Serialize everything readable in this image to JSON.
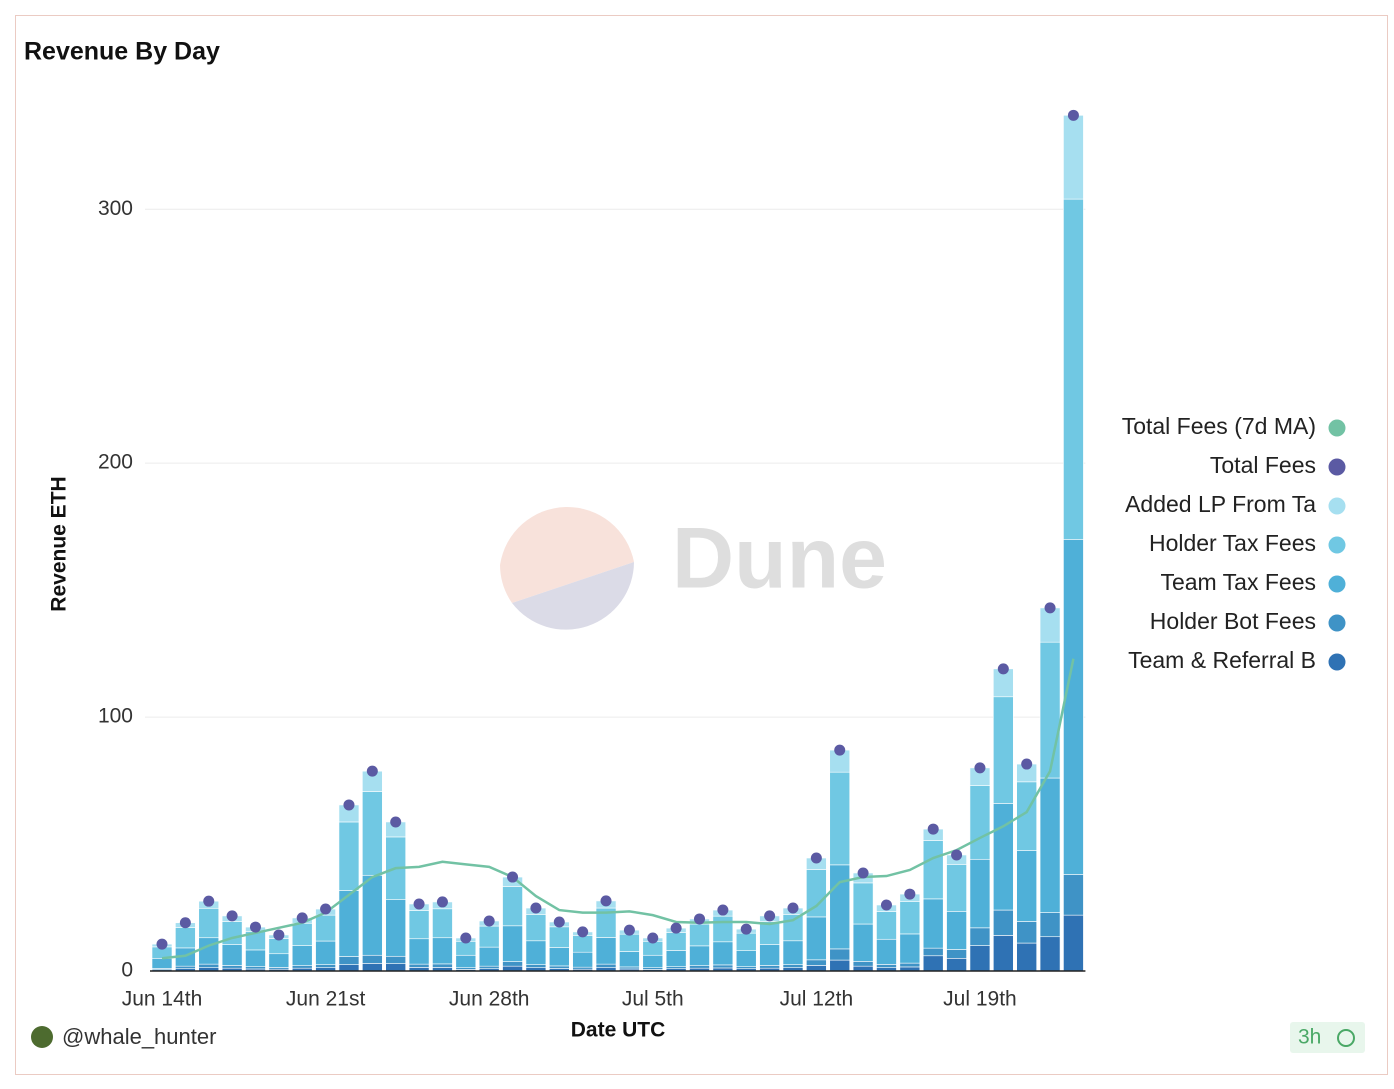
{
  "chart_data": {
    "type": "bar",
    "stacked": true,
    "title": "Revenue By Day",
    "x_label": "Date UTC",
    "y_label": "Revenue ETH",
    "watermark": "Dune",
    "author": "@whale_hunter",
    "age": "3h",
    "categories": [
      "Jun 14th",
      null,
      null,
      null,
      null,
      null,
      null,
      "Jun 21st",
      null,
      null,
      null,
      null,
      null,
      null,
      "Jun 28th",
      null,
      null,
      null,
      null,
      null,
      null,
      "Jul 5th",
      null,
      null,
      null,
      null,
      null,
      null,
      "Jul 12th",
      null,
      null,
      null,
      null,
      null,
      null,
      "Jul 19th",
      null,
      null,
      null,
      null
    ],
    "ylim": [
      0,
      345
    ],
    "yticks": [
      0,
      100,
      200,
      300
    ],
    "grid": true,
    "legend": "right",
    "series": [
      {
        "name": "Total Fees (7d MA)",
        "type": "line",
        "color": "#72c2a4",
        "values": [
          5,
          6,
          10,
          13,
          15,
          17,
          19,
          23,
          30,
          37,
          40.5,
          41,
          43,
          42,
          41,
          37,
          29.5,
          24,
          23,
          23,
          23.5,
          22,
          19.3,
          19,
          19.3,
          19.3,
          18.5,
          20,
          25.6,
          35,
          37,
          37.4,
          39.8,
          44.5,
          47.6,
          52.4,
          57,
          62.6,
          78.7,
          123
        ]
      },
      {
        "name": "Total Fees",
        "type": "scatter",
        "color": "#5b5aa3",
        "values": [
          10.6,
          19,
          27.5,
          21.7,
          17.3,
          14.2,
          20.9,
          24.4,
          65.4,
          78.7,
          58.7,
          26.4,
          27.2,
          13,
          19.7,
          37,
          24.8,
          19.3,
          15.4,
          27.6,
          16.1,
          13,
          16.9,
          20.5,
          24,
          16.5,
          21.7,
          24.8,
          44.5,
          87,
          38.6,
          26,
          30.3,
          55.9,
          45.7,
          80,
          119,
          81.5,
          143,
          337
        ]
      },
      {
        "name": "Added LP From Ta",
        "type": "bar",
        "color": "#a6dff0",
        "values": [
          1.1,
          1.9,
          2.8,
          2.2,
          1.7,
          1.4,
          2.1,
          2.4,
          6.7,
          8,
          5.9,
          2.6,
          2.7,
          1.3,
          2,
          3.7,
          2.5,
          1.9,
          1.5,
          2.8,
          1.6,
          1.3,
          1.7,
          2,
          2.4,
          1.6,
          2.2,
          2.5,
          4.5,
          8.7,
          3.9,
          2.6,
          3,
          4.5,
          3.7,
          7,
          11,
          7,
          13.5,
          33
        ]
      },
      {
        "name": "Holder Tax Fees",
        "type": "bar",
        "color": "#70c8e3",
        "values": [
          4.5,
          8,
          11.6,
          9.1,
          7.3,
          6,
          8.8,
          10.2,
          27,
          33,
          24.7,
          11.1,
          11.4,
          5.5,
          8.3,
          15.5,
          10.4,
          8.1,
          6.5,
          11.6,
          6.8,
          5.5,
          7.1,
          8.6,
          10.1,
          6.9,
          9.1,
          10.4,
          18.7,
          36.5,
          16.2,
          10.9,
          12.7,
          23,
          18.5,
          29,
          42,
          27,
          53.5,
          134
        ]
      },
      {
        "name": "Team Tax Fees",
        "type": "bar",
        "color": "#4fb0d8",
        "values": [
          4,
          7.2,
          10.4,
          8.2,
          6.6,
          5.4,
          7.9,
          9.3,
          26,
          31.5,
          22.3,
          10,
          10.3,
          4.9,
          7.5,
          14.1,
          9.4,
          7.3,
          5.9,
          10.5,
          6.1,
          4.9,
          6.4,
          7.8,
          9.1,
          6.3,
          8.2,
          9.4,
          16.9,
          33.1,
          14.7,
          9.9,
          11.5,
          19.4,
          15,
          27,
          42,
          28,
          53,
          132
        ]
      },
      {
        "name": "Holder Bot Fees",
        "type": "bar",
        "color": "#3f93c6",
        "values": [
          0.5,
          1,
          1.4,
          1.1,
          0.9,
          0.7,
          1,
          1.2,
          3.2,
          3.2,
          2.9,
          1.3,
          1.4,
          0.7,
          1,
          1.8,
          1.2,
          1,
          0.8,
          1.4,
          0.8,
          0.7,
          0.8,
          1,
          1.2,
          0.8,
          1.1,
          1.2,
          2.2,
          4.4,
          1.9,
          1.3,
          1.5,
          3,
          3.5,
          7,
          10,
          8.5,
          9.5,
          16
        ]
      },
      {
        "name": "Team & Referral B",
        "type": "bar",
        "color": "#2f72b4",
        "values": [
          0.5,
          0.9,
          1.3,
          1.1,
          0.8,
          0.7,
          1.1,
          1.3,
          2.5,
          3,
          2.9,
          1.4,
          1.4,
          0.6,
          0.9,
          1.9,
          1.3,
          1,
          0.7,
          1.3,
          0.8,
          0.6,
          0.9,
          1.1,
          1.2,
          0.9,
          1.1,
          1.3,
          2.2,
          4.3,
          1.9,
          1.3,
          1.6,
          6,
          5,
          10,
          14,
          11,
          13.5,
          22
        ]
      }
    ]
  }
}
